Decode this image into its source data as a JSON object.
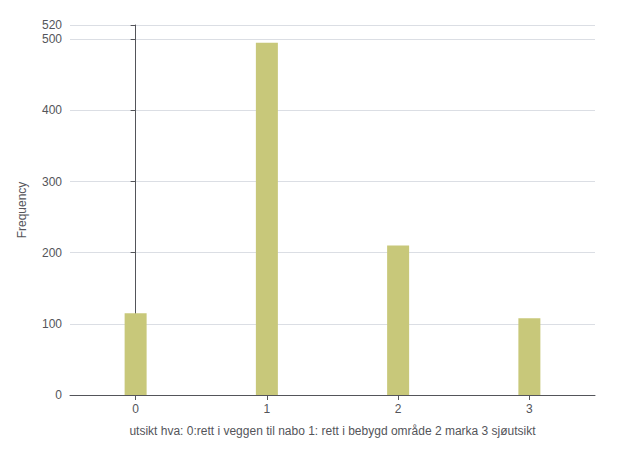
{
  "chart_data": {
    "type": "bar",
    "x": [
      0,
      1,
      2,
      3
    ],
    "values": [
      115,
      495,
      210,
      108
    ],
    "color": "#C8C87A",
    "xlabel": "utsikt hva: 0:rett i veggen til nabo 1: rett i bebygd område 2 marka 3 sjøutsikt",
    "ylabel": "Frequency",
    "xlim": [
      -0.5,
      3.5
    ],
    "xticks": [
      0,
      1,
      2,
      3
    ],
    "ylim": [
      0,
      520
    ],
    "yticks": [
      0,
      100,
      200,
      300,
      400,
      500
    ],
    "grid": true
  }
}
